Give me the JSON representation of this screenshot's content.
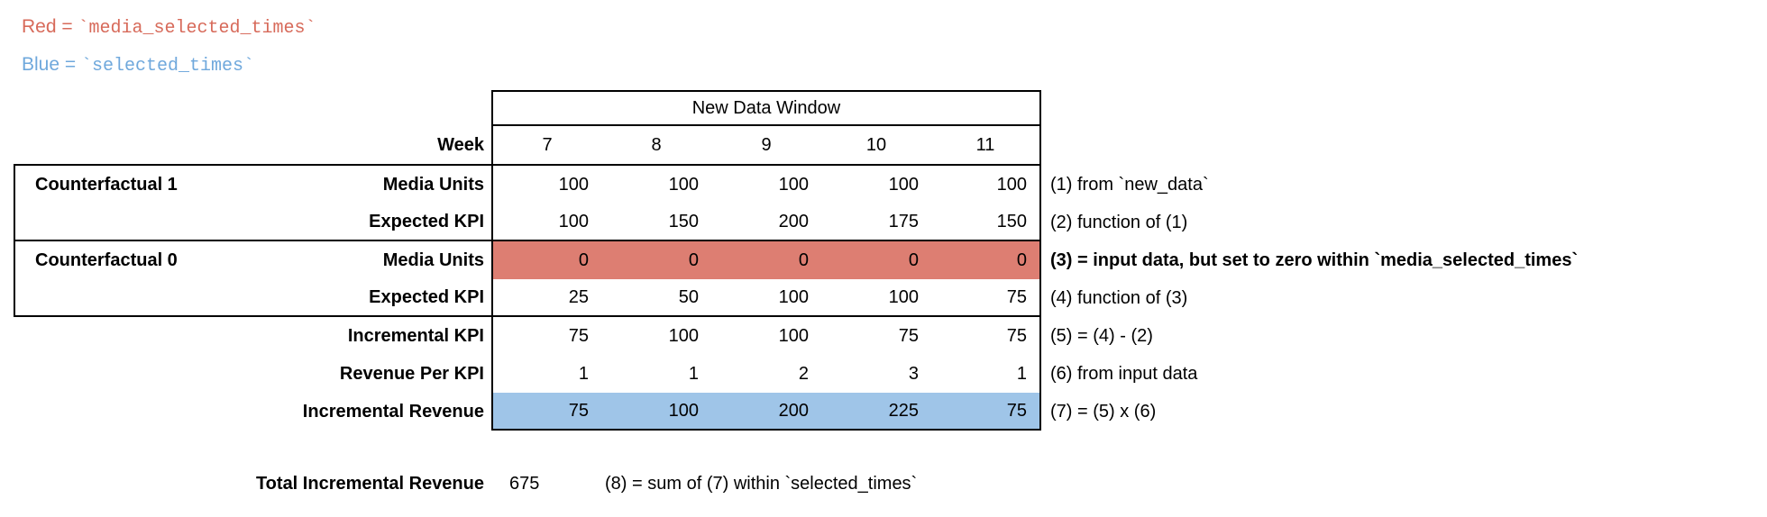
{
  "legend": {
    "red_label": "Red = ",
    "red_code": "`media_selected_times`",
    "blue_label": "Blue = ",
    "blue_code": "`selected_times`"
  },
  "table": {
    "window_header": "New Data Window",
    "week_label": "Week",
    "weeks": [
      "7",
      "8",
      "9",
      "10",
      "11"
    ],
    "rows": [
      {
        "group": "Counterfactual 1",
        "label": "Media Units",
        "values": [
          100,
          100,
          100,
          100,
          100
        ],
        "annotation": "(1) from `new_data`"
      },
      {
        "group": "",
        "label": "Expected KPI",
        "values": [
          100,
          150,
          200,
          175,
          150
        ],
        "annotation": "(2) function of (1)"
      },
      {
        "group": "Counterfactual 0",
        "label": "Media Units",
        "values": [
          0,
          0,
          0,
          0,
          0
        ],
        "annotation": "(3) = input data, but set to zero within `media_selected_times`",
        "highlight": "red"
      },
      {
        "group": "",
        "label": "Expected KPI",
        "values": [
          25,
          50,
          100,
          100,
          75
        ],
        "annotation": "(4) function of (3)"
      },
      {
        "group": "",
        "label": "Incremental KPI",
        "values": [
          75,
          100,
          100,
          75,
          75
        ],
        "annotation": "(5) = (4) - (2)"
      },
      {
        "group": "",
        "label": "Revenue Per KPI",
        "values": [
          1,
          1,
          2,
          3,
          1
        ],
        "annotation": "(6) from input data"
      },
      {
        "group": "",
        "label": "Incremental Revenue",
        "values": [
          75,
          100,
          200,
          225,
          75
        ],
        "annotation": "(7) = (5) x (6)",
        "highlight": "blue"
      }
    ]
  },
  "total": {
    "label": "Total Incremental Revenue",
    "value": "675",
    "annotation": "(8) = sum of (7) within `selected_times`"
  },
  "colors": {
    "red_text": "#d76a5a",
    "red_bg": "#dd7e72",
    "blue_text": "#6fa8dc",
    "blue_bg": "#9fc5e8"
  }
}
